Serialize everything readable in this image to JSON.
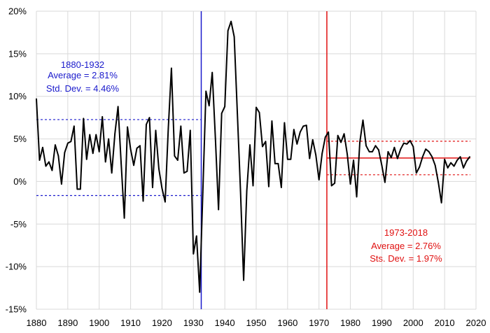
{
  "chart_data": {
    "type": "line",
    "title": "",
    "xlabel": "",
    "ylabel": "",
    "xlim": [
      1880,
      2020
    ],
    "ylim": [
      -15,
      20
    ],
    "grid": true,
    "x_ticks": [
      1880,
      1890,
      1900,
      1910,
      1920,
      1930,
      1940,
      1950,
      1960,
      1970,
      1980,
      1990,
      2000,
      2010,
      2020
    ],
    "x_tick_labels": [
      "1880",
      "1890",
      "1900",
      "1910",
      "1920",
      "1930",
      "1940",
      "1950",
      "1960",
      "1970",
      "1980",
      "1990",
      "2000",
      "2010",
      "2020"
    ],
    "y_ticks": [
      -15,
      -10,
      -5,
      0,
      5,
      10,
      15,
      20
    ],
    "y_tick_labels": [
      "-15%",
      "-10%",
      "-5%",
      "0%",
      "5%",
      "10%",
      "15%",
      "20%"
    ],
    "series": [
      {
        "color": "#000000",
        "x": [
          1880,
          1881,
          1882,
          1883,
          1884,
          1885,
          1886,
          1887,
          1888,
          1889,
          1890,
          1891,
          1892,
          1893,
          1894,
          1895,
          1896,
          1897,
          1898,
          1899,
          1900,
          1901,
          1902,
          1903,
          1904,
          1905,
          1906,
          1907,
          1908,
          1909,
          1910,
          1911,
          1912,
          1913,
          1914,
          1915,
          1916,
          1917,
          1918,
          1919,
          1920,
          1921,
          1922,
          1923,
          1924,
          1925,
          1926,
          1927,
          1928,
          1929,
          1930,
          1931,
          1932,
          1933,
          1934,
          1935,
          1936,
          1937,
          1938,
          1939,
          1940,
          1941,
          1942,
          1943,
          1944,
          1945,
          1946,
          1947,
          1948,
          1949,
          1950,
          1951,
          1952,
          1953,
          1954,
          1955,
          1956,
          1957,
          1958,
          1959,
          1960,
          1961,
          1962,
          1963,
          1964,
          1965,
          1966,
          1967,
          1968,
          1969,
          1970,
          1971,
          1972,
          1973,
          1974,
          1975,
          1976,
          1977,
          1978,
          1979,
          1980,
          1981,
          1982,
          1983,
          1984,
          1985,
          1986,
          1987,
          1988,
          1989,
          1990,
          1991,
          1992,
          1993,
          1994,
          1995,
          1996,
          1997,
          1998,
          1999,
          2000,
          2001,
          2002,
          2003,
          2004,
          2005,
          2006,
          2007,
          2008,
          2009,
          2010,
          2011,
          2012,
          2013,
          2014,
          2015,
          2016,
          2017,
          2018
        ],
        "values": [
          9.7,
          2.5,
          4.0,
          1.8,
          2.3,
          1.3,
          4.3,
          3.0,
          -0.3,
          3.4,
          4.5,
          4.7,
          6.5,
          -0.9,
          -0.9,
          7.4,
          2.6,
          5.5,
          3.3,
          5.5,
          3.5,
          7.6,
          2.3,
          5.0,
          1.0,
          5.6,
          8.8,
          2.1,
          -4.3,
          6.4,
          3.8,
          1.9,
          3.9,
          4.2,
          -2.3,
          6.7,
          7.5,
          -0.7,
          6.0,
          1.5,
          -0.8,
          -2.4,
          6.2,
          13.3,
          3.0,
          2.5,
          6.5,
          1.0,
          1.2,
          6.0,
          -8.5,
          -6.4,
          -13.0,
          -1.3,
          10.6,
          8.9,
          12.8,
          5.1,
          -3.3,
          8.0,
          8.8,
          17.7,
          18.8,
          17.0,
          8.0,
          -1.1,
          -11.6,
          -1.1,
          4.3,
          -0.5,
          8.7,
          8.1,
          4.1,
          4.7,
          -0.6,
          7.1,
          2.1,
          2.1,
          -0.7,
          6.9,
          2.6,
          2.6,
          6.1,
          4.4,
          5.8,
          6.5,
          6.6,
          2.7,
          4.9,
          3.1,
          0.2,
          3.3,
          5.2,
          5.8,
          -0.5,
          -0.2,
          5.4,
          4.6,
          5.6,
          3.2,
          -0.3,
          2.5,
          -1.8,
          4.6,
          7.2,
          4.2,
          3.5,
          3.5,
          4.2,
          3.7,
          1.9,
          -0.1,
          3.5,
          2.8,
          4.0,
          2.7,
          3.8,
          4.5,
          4.4,
          4.8,
          4.1,
          1.0,
          1.7,
          2.9,
          3.8,
          3.5,
          2.9,
          1.9,
          -0.1,
          -2.5,
          2.6,
          1.6,
          2.2,
          1.8,
          2.5,
          2.9,
          1.6,
          2.4,
          2.9
        ]
      }
    ],
    "period_1": {
      "title": "1880-1932",
      "average_text": "Average = 2.81%",
      "std_text": "Std. Dev. = 4.46%",
      "average": 2.81,
      "std_dev": 4.46,
      "start_year": 1880,
      "end_year": 1932,
      "color": "#1a1acc"
    },
    "period_2": {
      "title": "1973-2018",
      "average_text": "Average = 2.76%",
      "std_text": "Sts. Dev. = 1.97%",
      "average": 2.76,
      "std_dev": 1.97,
      "start_year": 1973,
      "end_year": 2018,
      "color": "#e01010"
    },
    "grid_color": "#d9d9d9"
  }
}
